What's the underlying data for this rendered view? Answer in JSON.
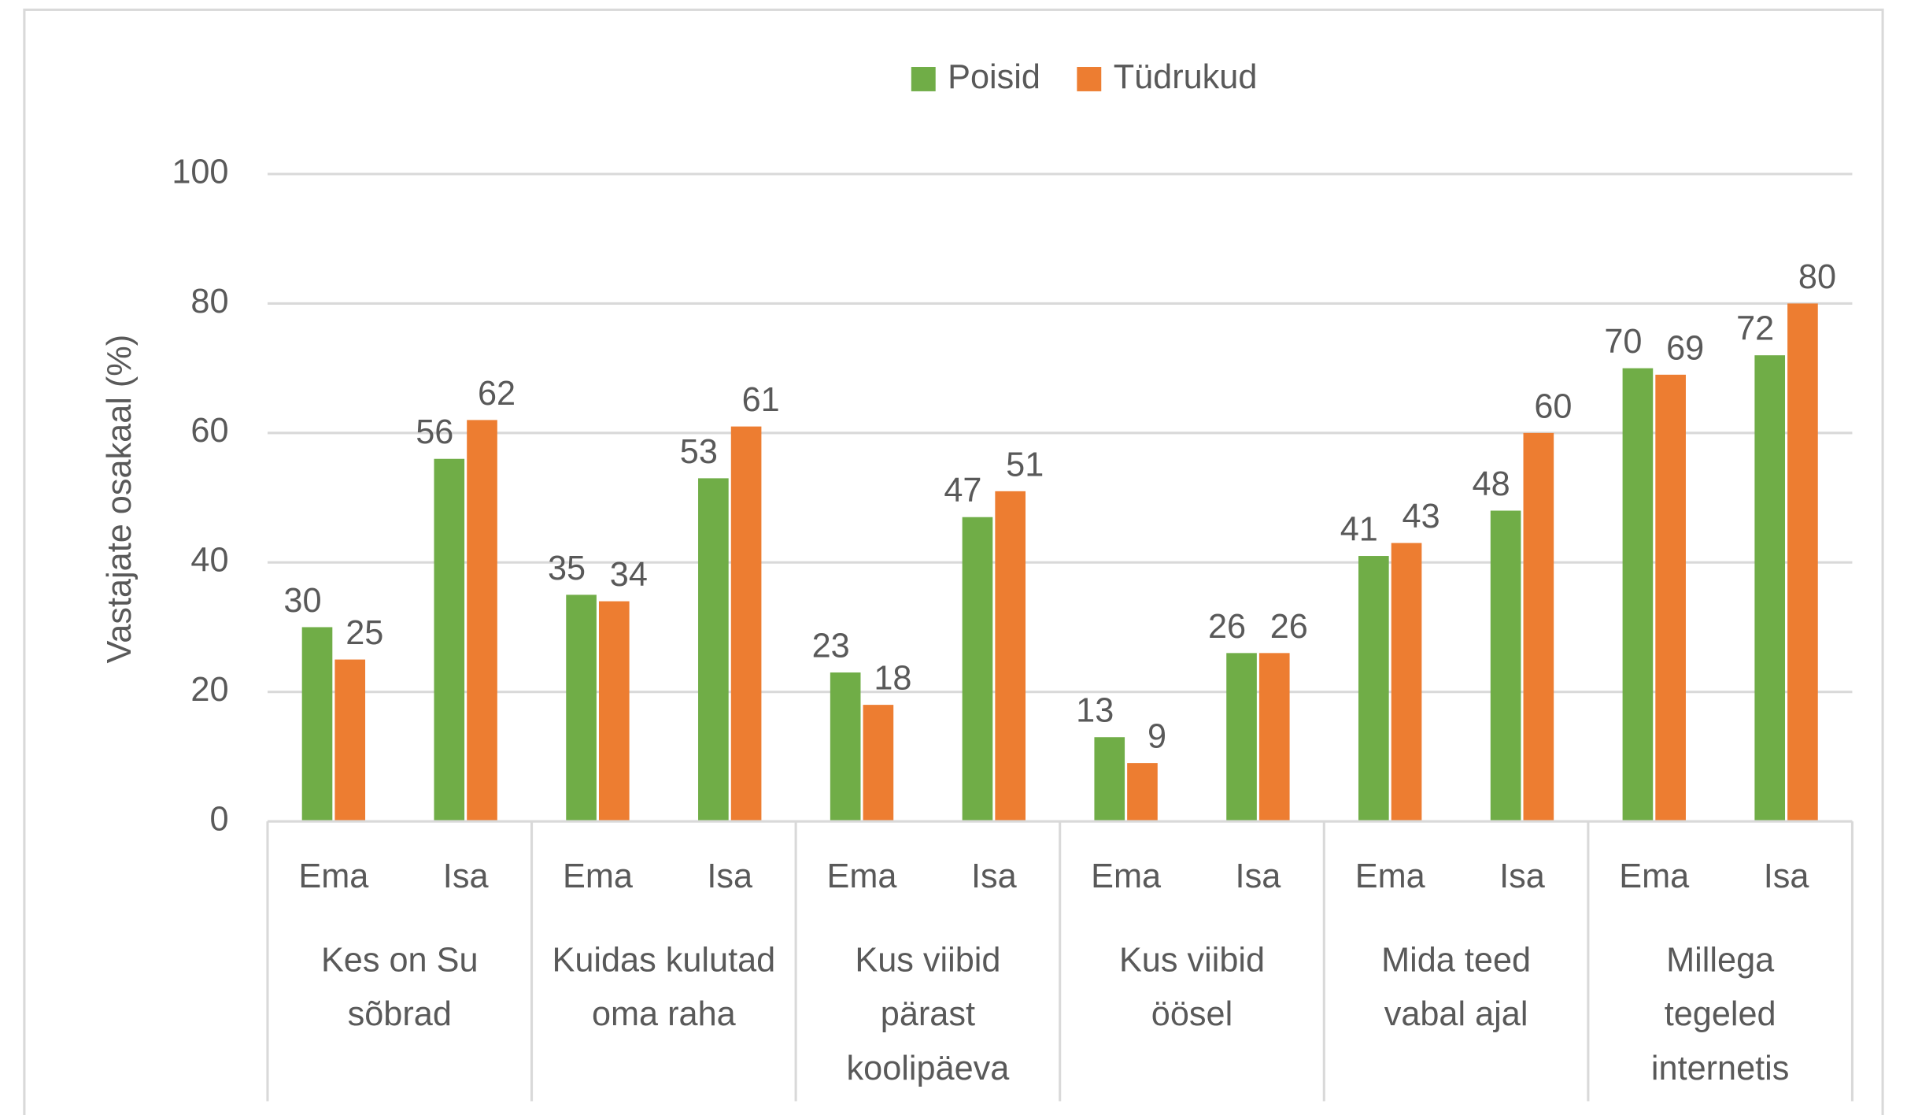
{
  "chart_data": {
    "type": "bar",
    "ylabel": "Vastajate osakaal (%)",
    "categories": [
      "Ema",
      "Isa",
      "Ema",
      "Isa",
      "Ema",
      "Isa",
      "Ema",
      "Isa",
      "Ema",
      "Isa",
      "Ema",
      "Isa"
    ],
    "groups": [
      "Kes on Su sõbrad",
      "Kuidas kulutad oma raha",
      "Kus viibid pärast koolipäeva",
      "Kus viibid öösel",
      "Mida teed vabal ajal",
      "Millega tegeled internetis"
    ],
    "series": [
      {
        "name": "Poisid",
        "color": "#70ad47",
        "values": [
          30,
          56,
          35,
          53,
          23,
          47,
          13,
          26,
          41,
          48,
          70,
          72
        ]
      },
      {
        "name": "Tüdrukud",
        "color": "#ed7d31",
        "values": [
          25,
          62,
          34,
          61,
          18,
          51,
          9,
          26,
          43,
          60,
          69,
          80
        ]
      }
    ],
    "ylim": [
      0,
      100
    ],
    "yticks": [
      0,
      20,
      40,
      60,
      80,
      100
    ],
    "grid": true,
    "legend": "top"
  }
}
